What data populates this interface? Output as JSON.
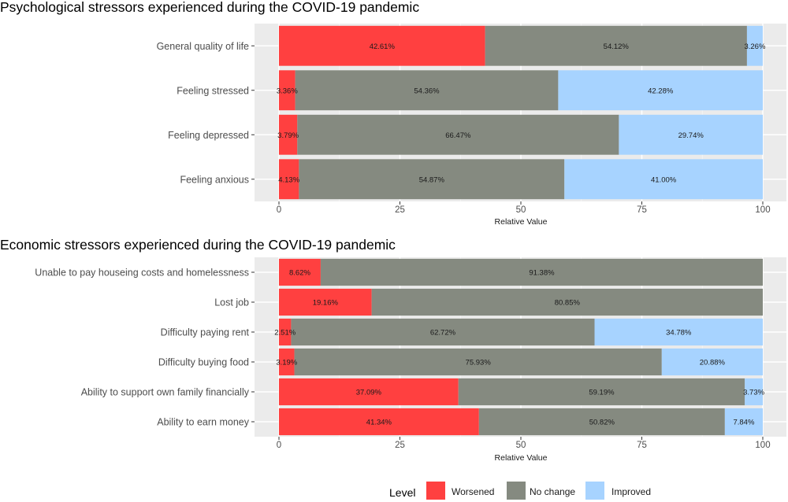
{
  "chart_data": [
    {
      "type": "bar",
      "orientation": "horizontal",
      "stacked": true,
      "title": "Psychological stressors experienced during the COVID-19 pandemic",
      "xlabel": "Relative Value",
      "ylabel": "",
      "xlim": [
        0,
        100
      ],
      "xticks": [
        "0",
        "25",
        "50",
        "75",
        "100"
      ],
      "grid": true,
      "categories": [
        "General quality of life",
        "Feeling stressed",
        "Feeling depressed",
        "Feeling anxious"
      ],
      "series": [
        {
          "name": "Worsened",
          "color": "#ff4040",
          "values": [
            42.61,
            3.36,
            3.79,
            4.13
          ],
          "labels": [
            "42.61%",
            "3.36%",
            "3.79%",
            "4.13%"
          ]
        },
        {
          "name": "No change",
          "color": "#858a80",
          "values": [
            54.12,
            54.36,
            66.47,
            54.87
          ],
          "labels": [
            "54.12%",
            "54.36%",
            "66.47%",
            "54.87%"
          ]
        },
        {
          "name": "Improved",
          "color": "#a7d3ff",
          "values": [
            3.26,
            42.28,
            29.74,
            41.0
          ],
          "labels": [
            "3.26%",
            "42.28%",
            "29.74%",
            "41.00%"
          ]
        }
      ]
    },
    {
      "type": "bar",
      "orientation": "horizontal",
      "stacked": true,
      "title": "Economic stressors experienced during the COVID-19 pandemic",
      "xlabel": "Relative Value",
      "ylabel": "",
      "xlim": [
        0,
        100
      ],
      "xticks": [
        "0",
        "25",
        "50",
        "75",
        "100"
      ],
      "grid": true,
      "categories": [
        "Unable to pay houseing costs and homelessness",
        "Lost job",
        "Difficulty paying rent",
        "Difficulty buying food",
        "Ability to support own family financially",
        "Ability to earn money"
      ],
      "series": [
        {
          "name": "Worsened",
          "color": "#ff4040",
          "values": [
            8.62,
            19.16,
            2.51,
            3.19,
            37.09,
            41.34
          ],
          "labels": [
            "8.62%",
            "19.16%",
            "2.51%",
            "3.19%",
            "37.09%",
            "41.34%"
          ]
        },
        {
          "name": "No change",
          "color": "#858a80",
          "values": [
            91.38,
            80.85,
            62.72,
            75.93,
            59.19,
            50.82
          ],
          "labels": [
            "91.38%",
            "80.85%",
            "62.72%",
            "75.93%",
            "59.19%",
            "50.82%"
          ]
        },
        {
          "name": "Improved",
          "color": "#a7d3ff",
          "values": [
            0,
            0,
            34.78,
            20.88,
            3.73,
            7.84
          ],
          "labels": [
            "",
            "",
            "34.78%",
            "20.88%",
            "3.73%",
            "7.84%"
          ]
        }
      ]
    }
  ],
  "legend": {
    "title": "Level",
    "position": "bottom",
    "items": [
      {
        "label": "Worsened",
        "color": "#ff4040"
      },
      {
        "label": "No change",
        "color": "#858a80"
      },
      {
        "label": "Improved",
        "color": "#a7d3ff"
      }
    ]
  }
}
